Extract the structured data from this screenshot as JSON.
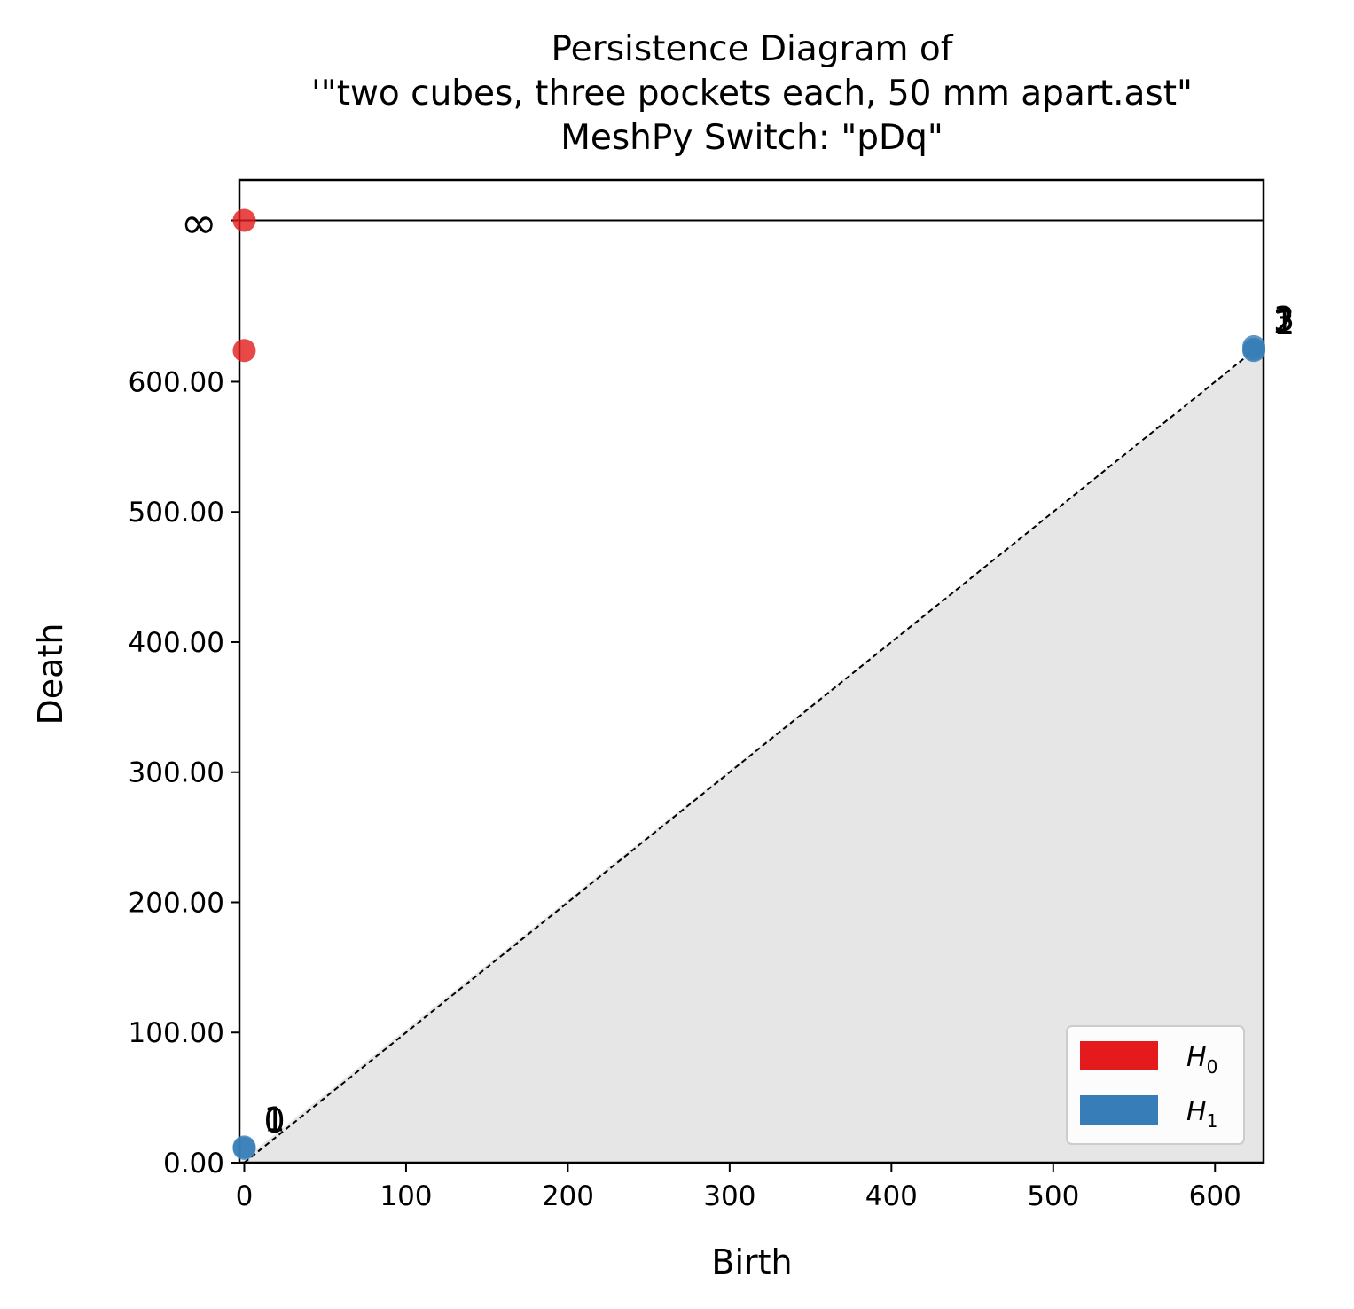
{
  "chart_data": {
    "type": "scatter",
    "title_lines": [
      "Persistence Diagram of",
      "'\"two cubes, three pockets each, 50 mm apart.ast\"",
      "MeshPy Switch: \"pDq\""
    ],
    "xlabel": "Birth",
    "ylabel": "Death",
    "xlim": [
      -3,
      630
    ],
    "ylim": [
      0,
      755
    ],
    "x_ticks": [
      0,
      100,
      200,
      300,
      400,
      500,
      600
    ],
    "x_tick_labels": [
      "0",
      "100",
      "200",
      "300",
      "400",
      "500",
      "600"
    ],
    "y_ticks": [
      0,
      100,
      200,
      300,
      400,
      500,
      600
    ],
    "y_tick_labels": [
      "0.00",
      "100.00",
      "200.00",
      "300.00",
      "400.00",
      "500.00",
      "600.00"
    ],
    "infinity_label": "∞",
    "infinity_value": 724,
    "grid": false,
    "legend_position": "lower-right",
    "diagonal": true,
    "series": [
      {
        "name": "H",
        "subscript": "0",
        "color": "#e41a1c",
        "points": [
          {
            "birth": 0,
            "death": 724
          },
          {
            "birth": 0,
            "death": 624
          }
        ]
      },
      {
        "name": "H",
        "subscript": "1",
        "color": "#377eb8",
        "points": [
          {
            "birth": 624,
            "death": 627
          },
          {
            "birth": 624,
            "death": 624
          },
          {
            "birth": 624,
            "death": 625
          },
          {
            "birth": 0,
            "death": 12
          },
          {
            "birth": 0,
            "death": 11
          }
        ]
      }
    ],
    "annotations": [
      {
        "text": "3",
        "x": 624,
        "y": 627
      },
      {
        "text": "1",
        "x": 624,
        "y": 624
      },
      {
        "text": "2",
        "x": 624,
        "y": 625
      },
      {
        "text": "1",
        "x": 0,
        "y": 12
      },
      {
        "text": "0",
        "x": 0,
        "y": 11
      }
    ]
  }
}
